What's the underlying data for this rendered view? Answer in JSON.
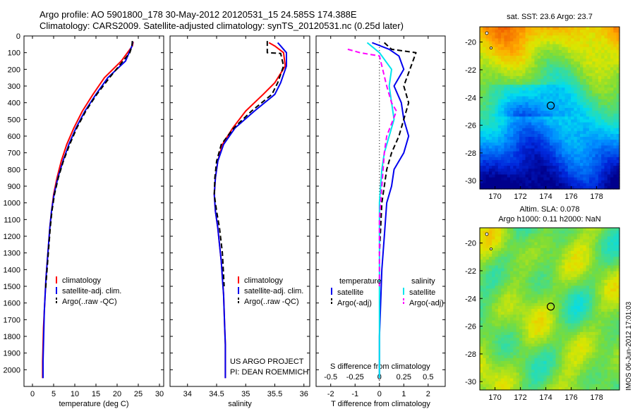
{
  "header": {
    "line1": "Argo profile: AO 5901800_178 30-May-2012 20120531_15 24.585S 174.388E",
    "line2": "Climatology: CARS2009. Satellite-adjusted climatology: synTS_20120531.nc (0.25d later)"
  },
  "colors": {
    "climatology": "#ff0000",
    "satellite": "#0000ee",
    "argo": "#000000",
    "salinity_satellite": "#00e5ee",
    "salinity_argo": "#ff00ff"
  },
  "credit": {
    "line1": "US ARGO PROJECT",
    "line2": "PI: DEAN ROEMMICH"
  },
  "stamp": "IMOS 06-Jun-2012 17:01:03",
  "chart_data": [
    {
      "id": "temperature",
      "type": "line",
      "xlabel": "temperature (deg C)",
      "ylabel": "",
      "xlim": [
        -2,
        31
      ],
      "ylim": [
        2100,
        0
      ],
      "xticks": [
        0,
        5,
        10,
        15,
        20,
        25,
        30
      ],
      "yticks": [
        0,
        100,
        200,
        300,
        400,
        500,
        600,
        700,
        800,
        900,
        1000,
        1100,
        1200,
        1300,
        1400,
        1500,
        1600,
        1700,
        1800,
        1900,
        2000
      ],
      "legend": [
        "climatology",
        "satellite-adj. clim.",
        "Argo(..raw -QC)"
      ],
      "series": [
        {
          "name": "climatology",
          "color": "#ff0000",
          "x": [
            23.8,
            23.6,
            21.0,
            17.0,
            14.3,
            11.8,
            9.8,
            8.1,
            6.8,
            5.8,
            5.0,
            4.5,
            4.1,
            3.8,
            3.5,
            3.2,
            3.0,
            2.8,
            2.6,
            2.5,
            2.4,
            2.4
          ],
          "y": [
            35,
            60,
            150,
            250,
            350,
            450,
            550,
            650,
            750,
            850,
            950,
            1050,
            1150,
            1250,
            1350,
            1450,
            1550,
            1650,
            1750,
            1850,
            1950,
            2050
          ]
        },
        {
          "name": "satellite-adj. clim.",
          "color": "#0000ee",
          "x": [
            23.7,
            23.5,
            22.0,
            17.8,
            15.0,
            12.4,
            10.3,
            8.6,
            7.2,
            6.0,
            5.1,
            4.5,
            4.1,
            3.8,
            3.5,
            3.2,
            3.0,
            2.8,
            2.7,
            2.6,
            2.5,
            2.5
          ],
          "y": [
            35,
            60,
            150,
            250,
            350,
            450,
            550,
            650,
            750,
            850,
            950,
            1050,
            1150,
            1250,
            1350,
            1450,
            1550,
            1650,
            1750,
            1850,
            1950,
            2050
          ]
        },
        {
          "name": "Argo(..raw -QC)",
          "color": "#000000",
          "dash": true,
          "x": [
            23.6,
            23.5,
            23.0,
            18.2,
            15.2,
            12.6,
            10.5,
            8.8,
            7.3,
            6.1,
            5.2,
            4.6,
            4.2,
            3.9,
            3.6,
            3.3,
            3.1
          ],
          "y": [
            30,
            60,
            100,
            250,
            350,
            450,
            550,
            650,
            750,
            850,
            950,
            1050,
            1150,
            1250,
            1350,
            1450,
            1520
          ]
        }
      ]
    },
    {
      "id": "salinity",
      "type": "line",
      "xlabel": "salinity",
      "ylabel": "",
      "xlim": [
        33.7,
        36.1
      ],
      "ylim": [
        2100,
        0
      ],
      "xticks": [
        34,
        34.5,
        35,
        35.5,
        36
      ],
      "legend": [
        "climatology",
        "satellite-adj. clim.",
        "Argo(..raw -QC)"
      ],
      "series": [
        {
          "name": "climatology",
          "color": "#ff0000",
          "x": [
            35.4,
            35.5,
            35.65,
            35.68,
            35.5,
            35.3,
            35.0,
            34.78,
            34.6,
            34.52,
            34.48,
            34.46,
            34.48,
            34.52,
            34.55,
            34.58,
            34.6,
            34.62,
            34.63,
            34.64,
            34.65,
            34.65
          ],
          "y": [
            40,
            60,
            100,
            180,
            280,
            350,
            450,
            550,
            650,
            750,
            850,
            950,
            1050,
            1150,
            1250,
            1350,
            1450,
            1550,
            1650,
            1750,
            1850,
            2050
          ]
        },
        {
          "name": "satellite-adj. clim.",
          "color": "#0000ee",
          "x": [
            35.55,
            35.6,
            35.7,
            35.7,
            35.6,
            35.5,
            35.15,
            34.82,
            34.62,
            34.52,
            34.48,
            34.46,
            34.48,
            34.52,
            34.55,
            34.58,
            34.6,
            34.62,
            34.63,
            34.64,
            34.65,
            34.65
          ],
          "y": [
            40,
            60,
            100,
            180,
            280,
            350,
            450,
            550,
            650,
            750,
            850,
            950,
            1050,
            1150,
            1250,
            1350,
            1450,
            1550,
            1650,
            1750,
            1850,
            2050
          ]
        },
        {
          "name": "Argo(..raw -QC)",
          "color": "#000000",
          "dash": true,
          "x": [
            35.37,
            35.37,
            35.6,
            35.65,
            35.55,
            35.45,
            35.1,
            34.8,
            34.58,
            34.5,
            34.47,
            34.46,
            34.5,
            34.55,
            34.6,
            34.63
          ],
          "y": [
            30,
            100,
            105,
            180,
            280,
            350,
            450,
            550,
            650,
            750,
            850,
            950,
            1050,
            1150,
            1300,
            1500
          ]
        }
      ]
    },
    {
      "id": "difference",
      "type": "line",
      "xlabel": "T difference from climatology",
      "x2label": "S difference from climatology",
      "xlim": [
        -2.6,
        2.7
      ],
      "x2lim": [
        -0.65,
        0.675
      ],
      "ylim": [
        2100,
        0
      ],
      "xticks": [
        -2,
        -1,
        0,
        1,
        2
      ],
      "x2ticks": [
        -0.5,
        -0.25,
        0,
        0.25,
        0.5
      ],
      "x2ticklabels": [
        "-0.5",
        "-0.25",
        "0",
        "0.25",
        "0.5"
      ],
      "legend_headers": [
        "temperature",
        "salinity"
      ],
      "legend": [
        "satellite",
        "Argo(-adj)",
        "satellite",
        "Argo(-adj)"
      ],
      "series": [
        {
          "name": "satellite",
          "group": "temperature",
          "color": "#0000ee",
          "x": [
            -0.3,
            0.4,
            0.8,
            1.0,
            0.6,
            0.9,
            1.0,
            1.2,
            1.0,
            0.6,
            0.5,
            0.3,
            0.2,
            0.1,
            0.05,
            0.0,
            0.0,
            0.0,
            0.0
          ],
          "y": [
            40,
            80,
            120,
            200,
            300,
            400,
            500,
            600,
            700,
            800,
            900,
            1000,
            1200,
            1400,
            1600,
            1800,
            1900,
            2000,
            2050
          ]
        },
        {
          "name": "Argo(-adj)",
          "group": "temperature",
          "color": "#000000",
          "dash": true,
          "x": [
            0.2,
            0.5,
            1.5,
            1.0,
            1.2,
            1.0,
            0.8,
            0.5,
            0.3,
            0.2,
            0.1,
            0.0
          ],
          "y": [
            40,
            80,
            100,
            300,
            400,
            500,
            600,
            700,
            800,
            900,
            1000,
            1300
          ]
        },
        {
          "name": "satellite",
          "group": "salinity",
          "color": "#00e5ee",
          "x": [
            -0.5,
            0.0,
            0.5,
            0.4,
            0.5,
            0.6,
            0.4,
            0.2,
            0.1,
            0.0,
            0.0,
            0.0,
            0.0,
            0.0
          ],
          "y": [
            40,
            100,
            200,
            300,
            400,
            500,
            600,
            700,
            800,
            1000,
            1200,
            1500,
            1800,
            2050
          ]
        },
        {
          "name": "Argo(-adj)",
          "group": "salinity",
          "color": "#ff00ff",
          "dash": true,
          "x": [
            -1.3,
            -0.8,
            0.0,
            0.3,
            0.5,
            0.7,
            0.3,
            0.2,
            0.1,
            0.0,
            0.0
          ],
          "y": [
            80,
            100,
            120,
            300,
            400,
            450,
            600,
            700,
            900,
            1100,
            1500
          ]
        }
      ]
    },
    {
      "id": "sst-map",
      "type": "heatmap",
      "title": "sat. SST: 23.6 Argo: 23.7",
      "xlim": [
        168.8,
        179.8
      ],
      "ylim": [
        -30.6,
        -18.9
      ],
      "xticks": [
        170,
        172,
        174,
        176,
        178
      ],
      "yticks": [
        -20,
        -22,
        -24,
        -26,
        -28,
        -30
      ],
      "marker": {
        "lon": 174.388,
        "lat": -24.585
      }
    },
    {
      "id": "sla-map",
      "type": "heatmap",
      "title_line1": "Altim. SLA: 0.078",
      "title_line2": "Argo h1000: 0.11 h2000: NaN",
      "xlim": [
        168.8,
        179.8
      ],
      "ylim": [
        -30.6,
        -18.9
      ],
      "xticks": [
        170,
        172,
        174,
        176,
        178
      ],
      "yticks": [
        -20,
        -22,
        -24,
        -26,
        -28,
        -30
      ],
      "marker": {
        "lon": 174.388,
        "lat": -24.585
      }
    }
  ]
}
